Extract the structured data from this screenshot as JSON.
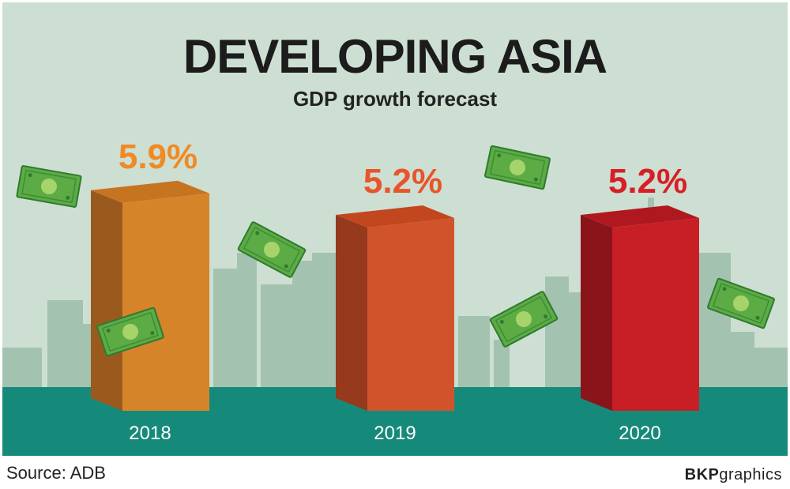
{
  "chart_data": {
    "type": "bar",
    "title": "DEVELOPING ASIA",
    "subtitle": "GDP growth forecast",
    "categories": [
      "2018",
      "2019",
      "2020"
    ],
    "values": [
      5.9,
      5.2,
      5.2
    ],
    "value_labels": [
      "5.9%",
      "5.2%",
      "5.2%"
    ],
    "colors": [
      "#f08a24",
      "#e8552a",
      "#d81f26"
    ],
    "front_colors": [
      "#d6842a",
      "#d1532b",
      "#c81f27"
    ],
    "side_colors": [
      "#9a5a1e",
      "#96391d",
      "#8a141a"
    ],
    "top_colors": [
      "#c67420",
      "#c2471f",
      "#b0181f"
    ],
    "grid": false
  },
  "footer": {
    "source": "Source: ADB",
    "brand_bold": "BKP",
    "brand_rest": "graphics"
  },
  "decor": {
    "background": "#cddfd2",
    "skyline_color": "#a3c3b0",
    "ground_color": "#168a7a",
    "banknote_icon": "banknote-icon"
  }
}
